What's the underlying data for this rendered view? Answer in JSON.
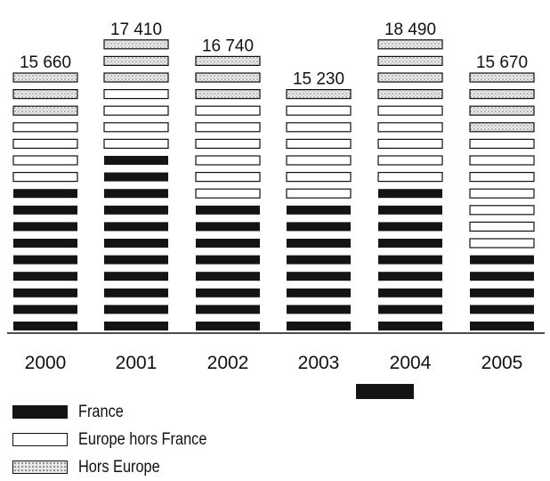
{
  "chart_data": {
    "type": "bar",
    "stacked": true,
    "categories": [
      "2000",
      "2001",
      "2002",
      "2003",
      "2004",
      "2005"
    ],
    "totals": [
      "15 660",
      "17 410",
      "16 740",
      "15 230",
      "18 490",
      "15 670"
    ],
    "series": [
      {
        "name": "France",
        "values": [
          8500,
          10500,
          8000,
          8000,
          9000,
          5000
        ],
        "style": "dark"
      },
      {
        "name": "Europe hors France",
        "values": [
          4200,
          3900,
          6200,
          6300,
          5000,
          6700
        ],
        "style": "light"
      },
      {
        "name": "Hors Europe",
        "values": [
          2960,
          3010,
          2540,
          930,
          4490,
          3970
        ],
        "style": "dotted"
      }
    ],
    "ylim": [
      0,
      19000
    ],
    "grid": false,
    "legend_position": "bottom-left",
    "colors": {
      "France": "#141414",
      "Europe hors France": "#ffffff",
      "Hors Europe": "#e8e8e8"
    }
  },
  "legend": {
    "france": "France",
    "europe": "Europe hors France",
    "hors_europe": "Hors Europe"
  }
}
